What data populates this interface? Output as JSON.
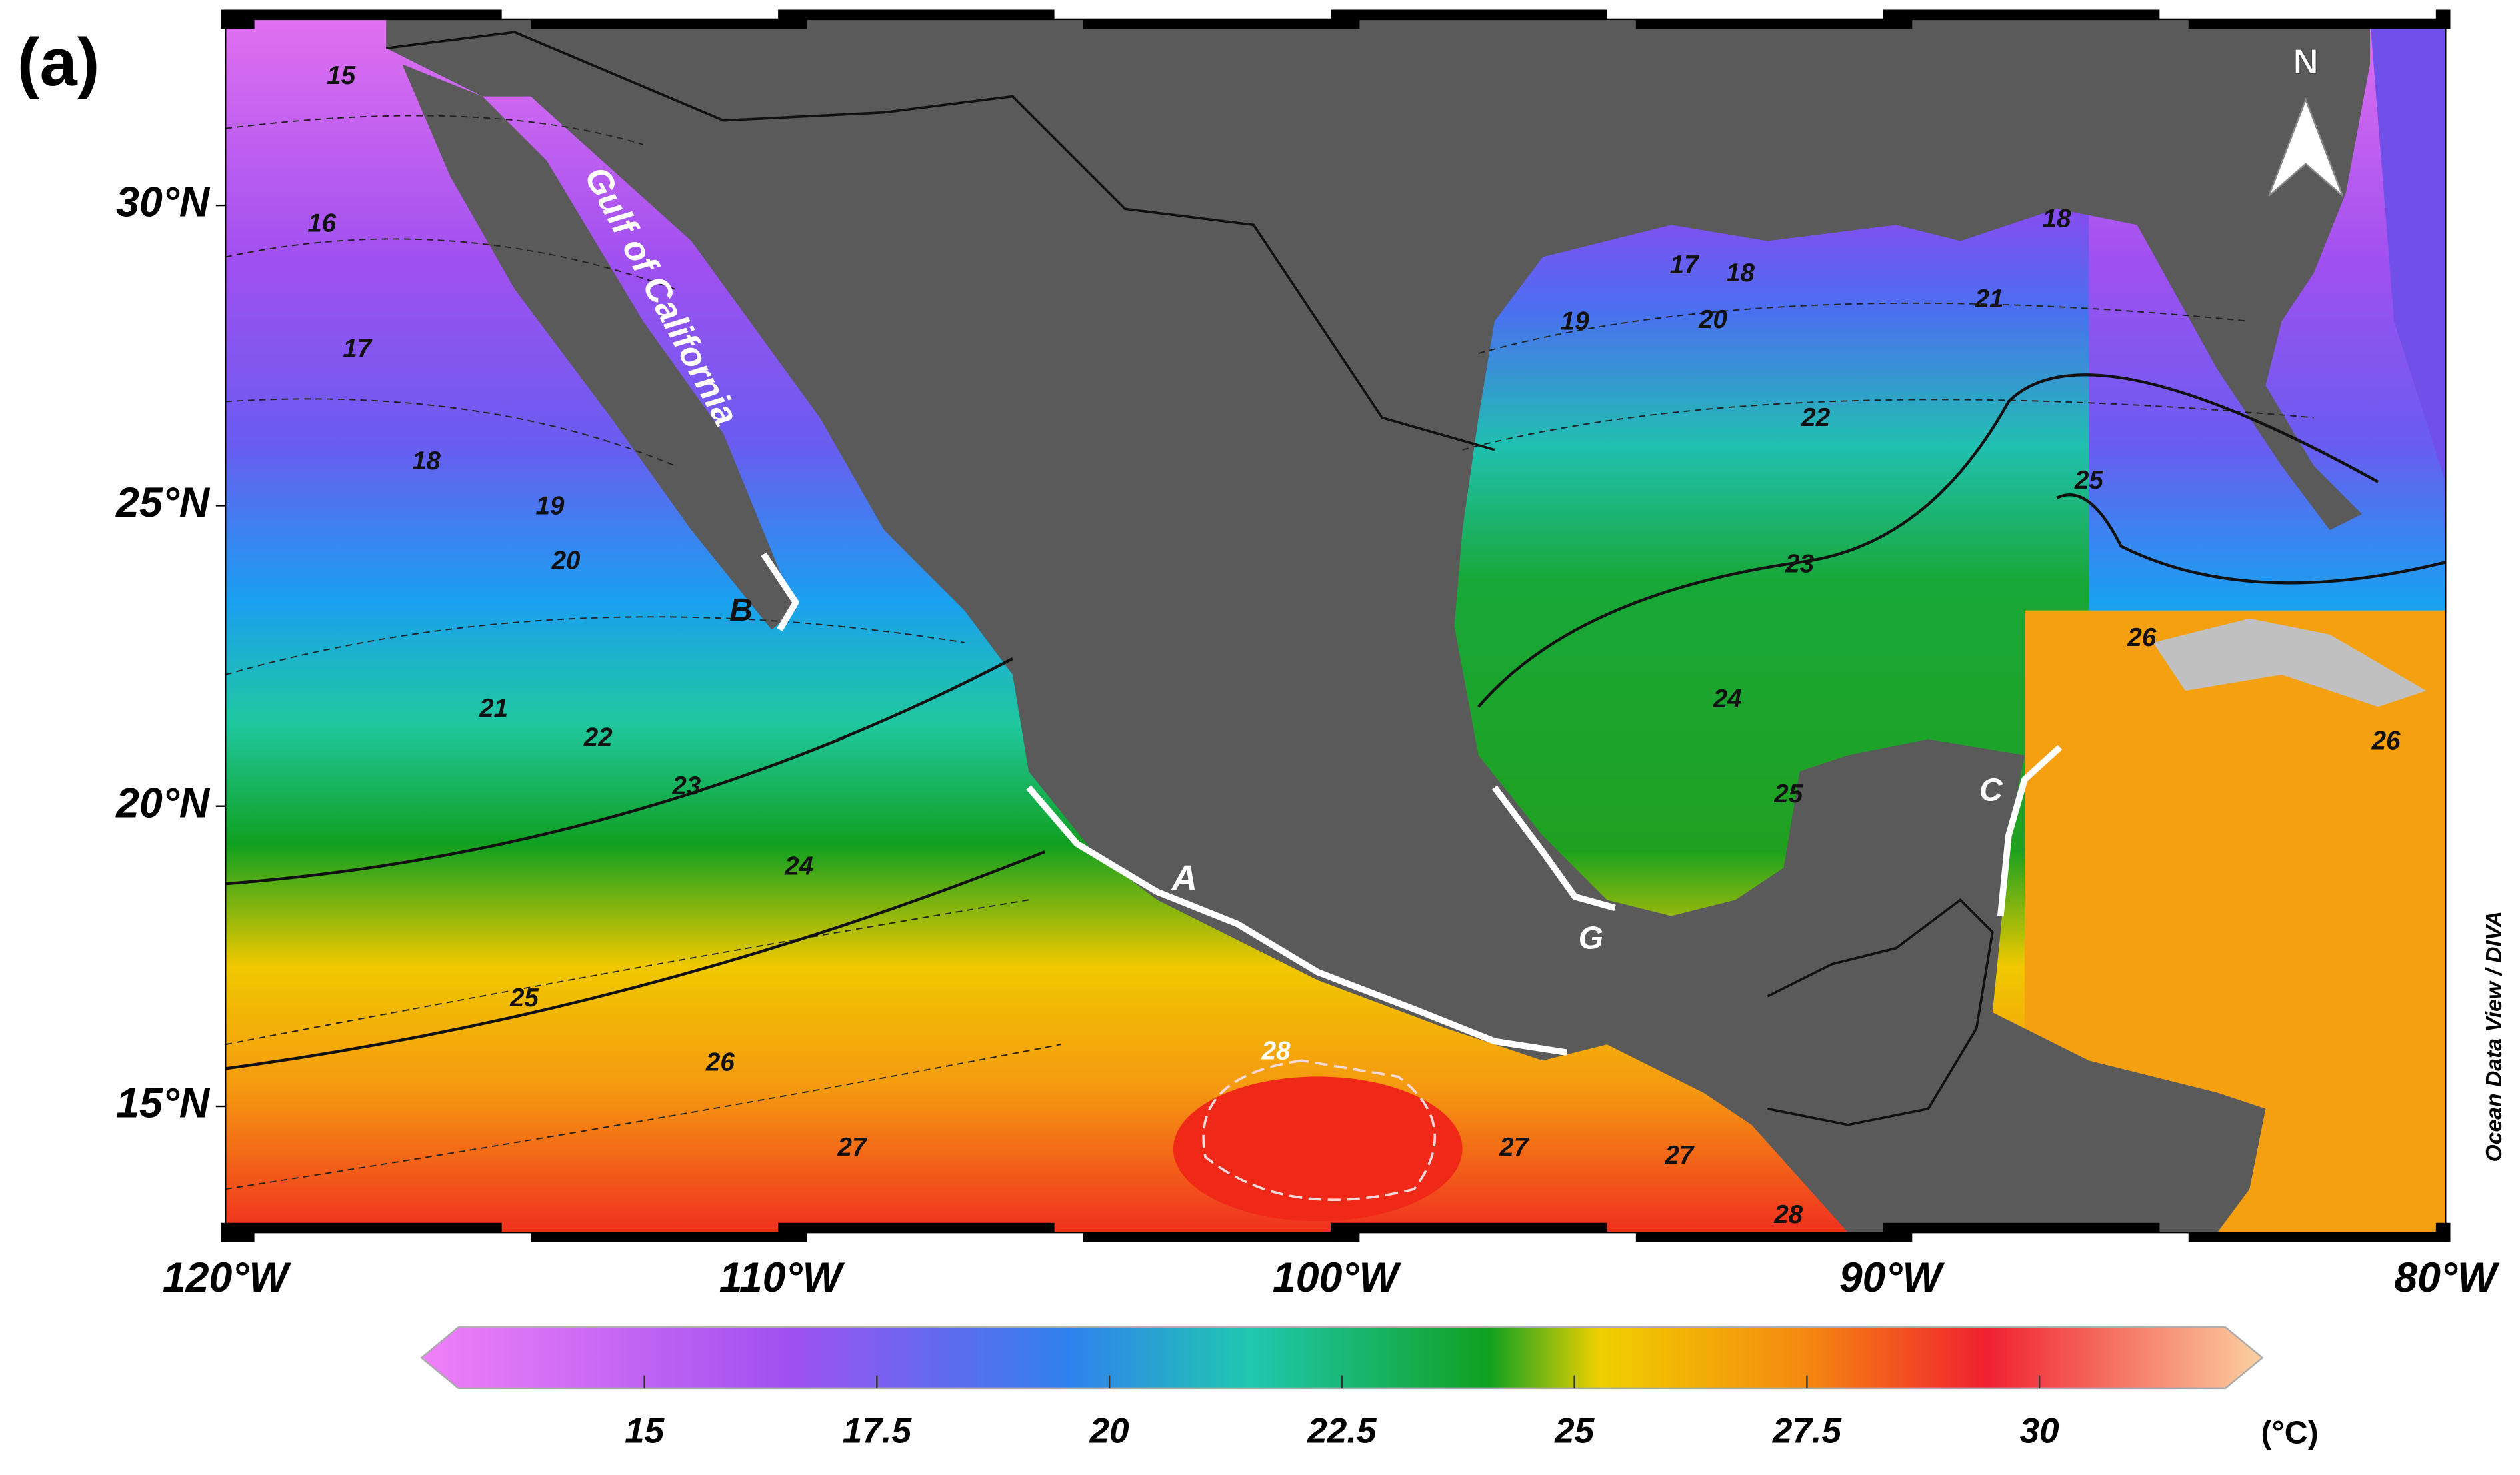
{
  "panel_label": "(a)",
  "north": "N",
  "credit": "Ocean Data View / DIVA",
  "map": {
    "xlim": [
      -120,
      -80
    ],
    "ylim": [
      12.9,
      33.1
    ],
    "xticks": [
      {
        "value": -120,
        "label": "120°W"
      },
      {
        "value": -110,
        "label": "110°W"
      },
      {
        "value": -100,
        "label": "100°W"
      },
      {
        "value": -90,
        "label": "90°W"
      },
      {
        "value": -80,
        "label": "80°W"
      }
    ],
    "yticks": [
      {
        "value": 15,
        "label": "15°N"
      },
      {
        "value": 20,
        "label": "20°N"
      },
      {
        "value": 25,
        "label": "25°N"
      },
      {
        "value": 30,
        "label": "30°N"
      }
    ],
    "region_labels": [
      "Gulf of California",
      "A",
      "B",
      "C",
      "G"
    ],
    "contour_labels": [
      "15",
      "16",
      "17",
      "18",
      "19",
      "20",
      "21",
      "22",
      "23",
      "24",
      "25",
      "26",
      "27",
      "28",
      "27",
      "27",
      "28",
      "17",
      "18",
      "19",
      "20",
      "21",
      "22",
      "23",
      "24",
      "25",
      "25",
      "26",
      "26",
      "18"
    ]
  },
  "colorbar": {
    "lim": [
      13,
      32
    ],
    "ticks": [
      15,
      17.5,
      20,
      22.5,
      25,
      27.5,
      30
    ],
    "unit": "(°C)"
  }
}
